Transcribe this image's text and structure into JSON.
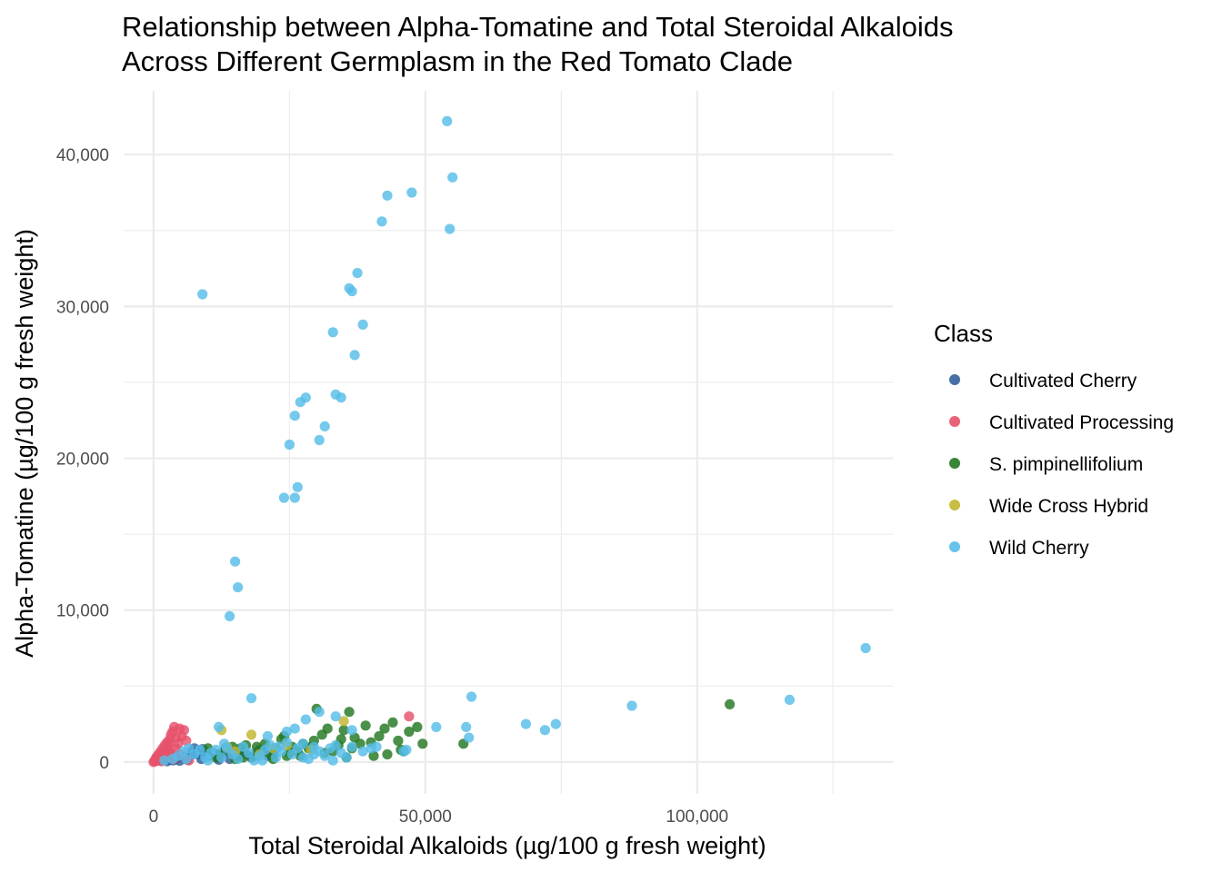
{
  "chart_data": {
    "type": "scatter",
    "title": "Relationship between Alpha-Tomatine and Total Steroidal Alkaloids",
    "subtitle": "Across Different Germplasm in the Red Tomato Clade",
    "xlabel": "Total Steroidal Alkaloids (µg/100 g fresh weight)",
    "ylabel": "Alpha-Tomatine (µg/100 g fresh weight)",
    "xlim": [
      -5500,
      136000
    ],
    "ylim": [
      -2100,
      44200
    ],
    "x_ticks": [
      0,
      50000,
      100000
    ],
    "x_tick_labels": [
      "0",
      "50,000",
      "100,000"
    ],
    "y_ticks": [
      0,
      10000,
      20000,
      30000,
      40000
    ],
    "y_tick_labels": [
      "0",
      "10,000",
      "20,000",
      "30,000",
      "40,000"
    ],
    "grid": true,
    "legend": {
      "title": "Class",
      "placement": "right"
    },
    "series": [
      {
        "name": "Cultivated Cherry",
        "color": "#335f99",
        "points": [
          [
            1200,
            100
          ],
          [
            1800,
            200
          ],
          [
            2300,
            300
          ],
          [
            2800,
            150
          ],
          [
            3200,
            400
          ],
          [
            3600,
            100
          ],
          [
            4100,
            250
          ],
          [
            4800,
            80
          ],
          [
            5500,
            300
          ],
          [
            6200,
            150
          ],
          [
            7000,
            700
          ],
          [
            7500,
            900
          ],
          [
            8200,
            500
          ],
          [
            8800,
            200
          ],
          [
            9500,
            700
          ],
          [
            10200,
            400
          ],
          [
            11000,
            600
          ],
          [
            11800,
            300
          ],
          [
            12500,
            500
          ],
          [
            13200,
            900
          ],
          [
            14000,
            200
          ],
          [
            15500,
            400
          ],
          [
            16500,
            700
          ],
          [
            18000,
            300
          ],
          [
            19000,
            600
          ],
          [
            20000,
            800
          ],
          [
            21000,
            400
          ],
          [
            22000,
            500
          ],
          [
            2500,
            50
          ],
          [
            3000,
            250
          ],
          [
            4000,
            180
          ],
          [
            6800,
            450
          ],
          [
            9000,
            850
          ],
          [
            12000,
            150
          ],
          [
            13500,
            650
          ],
          [
            17000,
            500
          ]
        ]
      },
      {
        "name": "Cultivated Processing",
        "color": "#e6526b",
        "points": [
          [
            0,
            0
          ],
          [
            200,
            50
          ],
          [
            400,
            100
          ],
          [
            600,
            80
          ],
          [
            800,
            200
          ],
          [
            1000,
            300
          ],
          [
            1200,
            150
          ],
          [
            1400,
            400
          ],
          [
            1600,
            500
          ],
          [
            1800,
            600
          ],
          [
            2000,
            700
          ],
          [
            2200,
            800
          ],
          [
            2400,
            900
          ],
          [
            2600,
            1000
          ],
          [
            2800,
            1200
          ],
          [
            3000,
            1500
          ],
          [
            3200,
            1800
          ],
          [
            3500,
            2000
          ],
          [
            3800,
            2300
          ],
          [
            4200,
            1600
          ],
          [
            4500,
            1200
          ],
          [
            4800,
            2200
          ],
          [
            5200,
            1700
          ],
          [
            5600,
            2100
          ],
          [
            6000,
            1400
          ],
          [
            500,
            300
          ],
          [
            900,
            500
          ],
          [
            1300,
            700
          ],
          [
            1700,
            900
          ],
          [
            2100,
            1100
          ],
          [
            2500,
            1300
          ],
          [
            2900,
            400
          ],
          [
            3300,
            600
          ],
          [
            3700,
            200
          ],
          [
            4100,
            900
          ],
          [
            5000,
            500
          ],
          [
            6500,
            100
          ],
          [
            300,
            150
          ],
          [
            700,
            350
          ],
          [
            1100,
            200
          ],
          [
            1500,
            50
          ],
          [
            47000,
            3000
          ]
        ]
      },
      {
        "name": "S. pimpinellifolium",
        "color": "#227722",
        "points": [
          [
            10000,
            900
          ],
          [
            11500,
            300
          ],
          [
            13000,
            700
          ],
          [
            14500,
            1000
          ],
          [
            15000,
            200
          ],
          [
            16000,
            900
          ],
          [
            17000,
            1100
          ],
          [
            18500,
            400
          ],
          [
            19500,
            800
          ],
          [
            20500,
            1200
          ],
          [
            21500,
            500
          ],
          [
            22500,
            900
          ],
          [
            23500,
            1500
          ],
          [
            24000,
            1700
          ],
          [
            24500,
            400
          ],
          [
            25500,
            1000
          ],
          [
            26500,
            700
          ],
          [
            27500,
            1200
          ],
          [
            28500,
            900
          ],
          [
            29500,
            1400
          ],
          [
            30000,
            3500
          ],
          [
            31000,
            1800
          ],
          [
            32000,
            2200
          ],
          [
            33000,
            700
          ],
          [
            34000,
            1100
          ],
          [
            35000,
            2100
          ],
          [
            35500,
            300
          ],
          [
            36000,
            3300
          ],
          [
            37000,
            1600
          ],
          [
            38000,
            1200
          ],
          [
            39000,
            2400
          ],
          [
            40000,
            1300
          ],
          [
            40500,
            400
          ],
          [
            41500,
            1700
          ],
          [
            42500,
            2200
          ],
          [
            43000,
            500
          ],
          [
            44000,
            2600
          ],
          [
            45000,
            1400
          ],
          [
            45500,
            800
          ],
          [
            46000,
            700
          ],
          [
            47000,
            2000
          ],
          [
            48500,
            2300
          ],
          [
            49500,
            1200
          ],
          [
            57000,
            1200
          ],
          [
            106000,
            3800
          ],
          [
            12000,
            500
          ],
          [
            16500,
            300
          ],
          [
            19000,
            1000
          ],
          [
            22000,
            200
          ],
          [
            25000,
            600
          ],
          [
            27000,
            400
          ],
          [
            29000,
            1000
          ],
          [
            31500,
            600
          ],
          [
            34500,
            1500
          ],
          [
            36500,
            900
          ]
        ]
      },
      {
        "name": "Wide Cross Hybrid",
        "color": "#c2b52e",
        "points": [
          [
            12500,
            2100
          ],
          [
            13500,
            1000
          ],
          [
            15000,
            700
          ],
          [
            18000,
            1800
          ],
          [
            19500,
            500
          ],
          [
            22000,
            900
          ],
          [
            24500,
            1100
          ],
          [
            29000,
            800
          ],
          [
            35000,
            2700
          ]
        ]
      },
      {
        "name": "Wild Cherry",
        "color": "#56bde8",
        "points": [
          [
            54000,
            42200
          ],
          [
            55000,
            38500
          ],
          [
            47500,
            37500
          ],
          [
            43000,
            37300
          ],
          [
            42000,
            35600
          ],
          [
            54500,
            35100
          ],
          [
            37500,
            32200
          ],
          [
            36000,
            31200
          ],
          [
            36500,
            31000
          ],
          [
            9000,
            30800
          ],
          [
            38500,
            28800
          ],
          [
            33000,
            28300
          ],
          [
            37000,
            26800
          ],
          [
            33500,
            24200
          ],
          [
            28000,
            24000
          ],
          [
            34500,
            24000
          ],
          [
            27000,
            23700
          ],
          [
            26000,
            22800
          ],
          [
            31500,
            22100
          ],
          [
            30500,
            21200
          ],
          [
            25000,
            20900
          ],
          [
            26500,
            18100
          ],
          [
            24000,
            17400
          ],
          [
            26000,
            17400
          ],
          [
            15000,
            13200
          ],
          [
            15500,
            11500
          ],
          [
            14000,
            9600
          ],
          [
            131000,
            7500
          ],
          [
            18000,
            4200
          ],
          [
            58500,
            4300
          ],
          [
            117000,
            4100
          ],
          [
            88000,
            3700
          ],
          [
            12000,
            2300
          ],
          [
            33500,
            3000
          ],
          [
            30500,
            3300
          ],
          [
            28000,
            2800
          ],
          [
            36500,
            2100
          ],
          [
            52000,
            2300
          ],
          [
            57500,
            2300
          ],
          [
            58000,
            1600
          ],
          [
            68500,
            2500
          ],
          [
            72000,
            2100
          ],
          [
            74000,
            2500
          ],
          [
            24500,
            2000
          ],
          [
            26000,
            2200
          ],
          [
            21000,
            1700
          ],
          [
            46000,
            700
          ],
          [
            46500,
            800
          ],
          [
            33000,
            100
          ],
          [
            29500,
            500
          ],
          [
            27500,
            300
          ],
          [
            38500,
            700
          ],
          [
            40000,
            900
          ],
          [
            41000,
            1000
          ],
          [
            10500,
            600
          ],
          [
            11500,
            800
          ],
          [
            12500,
            300
          ],
          [
            13500,
            900
          ],
          [
            14500,
            500
          ],
          [
            15500,
            200
          ],
          [
            16500,
            1000
          ],
          [
            17500,
            600
          ],
          [
            18500,
            100
          ],
          [
            19500,
            400
          ],
          [
            20500,
            800
          ],
          [
            21500,
            1100
          ],
          [
            22500,
            300
          ],
          [
            23500,
            700
          ],
          [
            24500,
            1300
          ],
          [
            25500,
            500
          ],
          [
            26500,
            900
          ],
          [
            27500,
            1200
          ],
          [
            28500,
            200
          ],
          [
            29500,
            1000
          ],
          [
            30500,
            700
          ],
          [
            31500,
            400
          ],
          [
            32500,
            900
          ],
          [
            33500,
            1100
          ],
          [
            34500,
            600
          ],
          [
            35500,
            300
          ],
          [
            36500,
            1000
          ],
          [
            6000,
            200
          ],
          [
            7500,
            500
          ],
          [
            8500,
            800
          ],
          [
            9500,
            300
          ],
          [
            2000,
            100
          ],
          [
            3500,
            200
          ],
          [
            4500,
            400
          ],
          [
            5500,
            700
          ],
          [
            6500,
            900
          ],
          [
            10000,
            100
          ],
          [
            13000,
            1200
          ],
          [
            20000,
            100
          ],
          [
            23000,
            1000
          ]
        ]
      }
    ]
  }
}
